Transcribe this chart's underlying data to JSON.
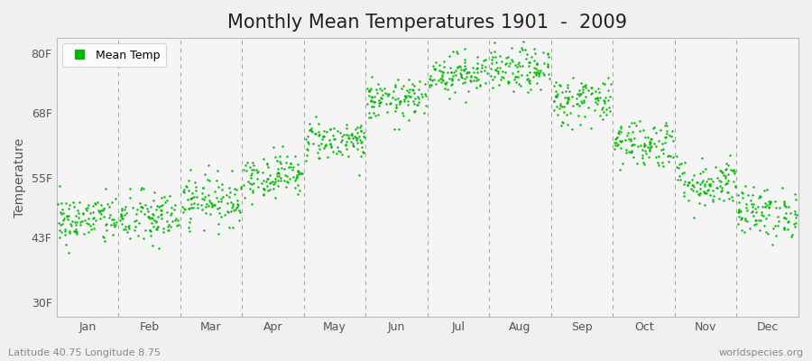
{
  "title": "Monthly Mean Temperatures 1901  -  2009",
  "ylabel": "Temperature",
  "ytick_labels": [
    "30F",
    "43F",
    "55F",
    "68F",
    "80F"
  ],
  "ytick_values": [
    30,
    43,
    55,
    68,
    80
  ],
  "ylim": [
    27,
    83
  ],
  "xlim": [
    0,
    12
  ],
  "months": [
    "Jan",
    "Feb",
    "Mar",
    "Apr",
    "May",
    "Jun",
    "Jul",
    "Aug",
    "Sep",
    "Oct",
    "Nov",
    "Dec"
  ],
  "month_centers": [
    0.5,
    1.5,
    2.5,
    3.5,
    4.5,
    5.5,
    6.5,
    7.5,
    8.5,
    9.5,
    10.5,
    11.5
  ],
  "month_boundaries": [
    1,
    2,
    3,
    4,
    5,
    6,
    7,
    8,
    9,
    10,
    11
  ],
  "mean_temps_F": [
    46.5,
    46.8,
    50.5,
    55.5,
    62.5,
    70.5,
    76.0,
    76.5,
    70.5,
    62.0,
    54.0,
    48.0
  ],
  "std_temps_F": [
    2.5,
    2.8,
    2.5,
    2.2,
    2.0,
    2.0,
    2.0,
    2.2,
    2.5,
    2.5,
    2.5,
    2.5
  ],
  "n_years": 109,
  "dot_color": "#00bb00",
  "dot_size": 3,
  "background_color": "#f0f0f0",
  "plot_bg_color": "#f5f5f5",
  "dashed_line_color": "#aaaaaa",
  "legend_label": "Mean Temp",
  "bottom_left_text": "Latitude 40.75 Longitude 8.75",
  "bottom_right_text": "worldspecies.org",
  "title_fontsize": 15,
  "axis_label_fontsize": 10,
  "tick_fontsize": 9,
  "annotation_fontsize": 8
}
